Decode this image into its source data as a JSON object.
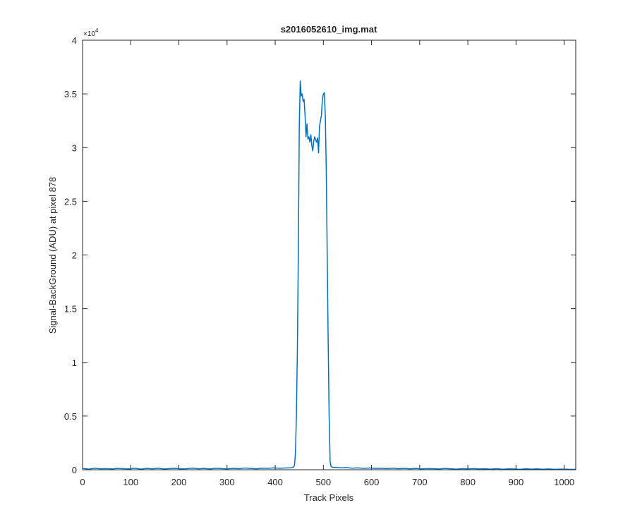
{
  "chart_data": {
    "type": "line",
    "title": "s2016052610_img.mat",
    "x_label": "Track Pixels",
    "y_label": "Signal-BackGround (ADU) at pixel 878",
    "y_multiplier": {
      "base": "×10",
      "exponent": "4"
    },
    "color": "#0072bd",
    "xlim": [
      0,
      1024
    ],
    "xticks": [
      0,
      100,
      200,
      300,
      400,
      500,
      600,
      700,
      800,
      900,
      1000
    ],
    "ylim": [
      0,
      40000
    ],
    "yticks": [
      0,
      {
        "value": 5000,
        "label": "0.5"
      },
      {
        "value": 10000,
        "label": "1"
      },
      {
        "value": 15000,
        "label": "1.5"
      },
      {
        "value": 20000,
        "label": "2"
      },
      {
        "value": 25000,
        "label": "2.5"
      },
      {
        "value": 30000,
        "label": "3"
      },
      {
        "value": 35000,
        "label": "3.5"
      },
      {
        "value": 40000,
        "label": "4"
      }
    ],
    "x": [
      1,
      13,
      25,
      37,
      49,
      61,
      73,
      85,
      97,
      109,
      121,
      133,
      145,
      157,
      169,
      181,
      193,
      205,
      217,
      229,
      241,
      253,
      265,
      277,
      289,
      301,
      313,
      325,
      337,
      349,
      361,
      373,
      385,
      397,
      409,
      421,
      433,
      436,
      438,
      440,
      442,
      444,
      446,
      448,
      450,
      452,
      454,
      456,
      458,
      460,
      462,
      464,
      466,
      468,
      470,
      472,
      474,
      476,
      478,
      480,
      482,
      484,
      486,
      488,
      490,
      492,
      494,
      496,
      498,
      500,
      502,
      504,
      506,
      508,
      510,
      512,
      514,
      516,
      518,
      520,
      524,
      536,
      548,
      560,
      572,
      584,
      596,
      608,
      620,
      632,
      644,
      656,
      668,
      680,
      692,
      704,
      716,
      728,
      740,
      752,
      764,
      776,
      788,
      800,
      812,
      824,
      836,
      848,
      860,
      872,
      884,
      896,
      908,
      920,
      932,
      944,
      956,
      968,
      980,
      992,
      1004,
      1016,
      1024
    ],
    "values": [
      120,
      60,
      140,
      90,
      110,
      70,
      130,
      100,
      80,
      150,
      60,
      120,
      90,
      140,
      70,
      110,
      130,
      80,
      100,
      150,
      90,
      120,
      70,
      140,
      110,
      80,
      130,
      100,
      160,
      120,
      90,
      150,
      130,
      170,
      140,
      160,
      180,
      200,
      260,
      400,
      1500,
      5000,
      11000,
      20000,
      32000,
      36200,
      34800,
      35000,
      34300,
      34500,
      33000,
      31000,
      32200,
      30800,
      31000,
      30500,
      31200,
      30200,
      29700,
      30600,
      31000,
      30700,
      30500,
      30900,
      29500,
      32000,
      32500,
      33000,
      34500,
      35000,
      35100,
      33000,
      28000,
      20000,
      12000,
      5000,
      800,
      300,
      250,
      220,
      220,
      180,
      200,
      150,
      170,
      130,
      160,
      120,
      140,
      110,
      150,
      100,
      130,
      90,
      120,
      80,
      110,
      100,
      70,
      120,
      90,
      60,
      100,
      80,
      110,
      70,
      90,
      60,
      100,
      50,
      80,
      70,
      40,
      90,
      60,
      80,
      50,
      70,
      40,
      60,
      50,
      30,
      40
    ]
  }
}
